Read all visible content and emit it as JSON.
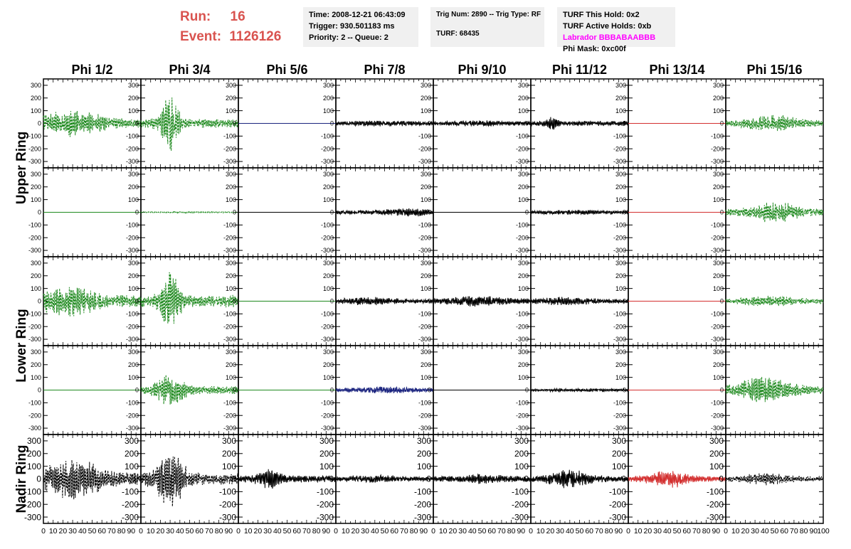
{
  "run": {
    "label": "Run:",
    "value": "16"
  },
  "event": {
    "label": "Event:",
    "value": "1126126"
  },
  "time_box": {
    "time": "Time: 2008-12-21 06:43:09",
    "trigger": "Trigger: 930.501183 ms",
    "priority": "Priority: 2 -- Queue: 2"
  },
  "trig_box": {
    "trig": "Trig Num: 2890 -- Trig Type: RF",
    "turf": "TURF: 68435"
  },
  "turf_box": {
    "this_hold": "TURF This Hold: 0x2",
    "active_holds": "TURF Active Holds: 0xb",
    "labrador": "Labrador BBBABAABBB",
    "phi_mask": "Phi Mask: 0xc00f",
    "labrador_color": "#ff00ff"
  },
  "chart_data": {
    "type": "line",
    "columns": [
      "Phi 1/2",
      "Phi 3/4",
      "Phi 5/6",
      "Phi 7/8",
      "Phi 9/10",
      "Phi 11/12",
      "Phi 13/14",
      "Phi 15/16"
    ],
    "row_labels": [
      {
        "label": "Upper Ring",
        "rows": [
          0,
          1
        ]
      },
      {
        "label": "Lower Ring",
        "rows": [
          2,
          3
        ]
      },
      {
        "label": "Nadir Ring",
        "rows": [
          4
        ]
      }
    ],
    "ylim": [
      -350,
      350
    ],
    "y_ticks": [
      -300,
      -200,
      -100,
      0,
      100,
      200,
      300
    ],
    "xlim": [
      0,
      100
    ],
    "x_tick_labels": [
      "0",
      "10",
      "20",
      "30",
      "40",
      "50",
      "60",
      "70",
      "80",
      "90",
      "100"
    ],
    "colors": {
      "green": "#1f8a1f",
      "black": "#000000",
      "blue": "#1a237e",
      "red": "#d32f2f"
    },
    "panels": [
      [
        {
          "color": "green",
          "dashed": true,
          "amp": 110,
          "peak": 30,
          "width": 35,
          "floor": 0.3,
          "seed": 11
        },
        {
          "color": "green",
          "dashed": true,
          "amp": 230,
          "peak": 30,
          "width": 10,
          "floor": 0.15,
          "seed": 12
        },
        {
          "color": "blue",
          "dashed": false,
          "amp": 0,
          "peak": 50,
          "width": 20,
          "floor": 0,
          "seed": 13
        },
        {
          "color": "black",
          "dashed": false,
          "amp": 25,
          "peak": 50,
          "width": 40,
          "floor": 0.6,
          "seed": 14
        },
        {
          "color": "black",
          "dashed": false,
          "amp": 25,
          "peak": 50,
          "width": 40,
          "floor": 0.6,
          "seed": 15
        },
        {
          "color": "black",
          "dashed": false,
          "amp": 60,
          "peak": 22,
          "width": 6,
          "floor": 0.35,
          "seed": 16
        },
        {
          "color": "red",
          "dashed": false,
          "amp": 0,
          "peak": 50,
          "width": 20,
          "floor": 0,
          "seed": 17
        },
        {
          "color": "green",
          "dashed": true,
          "amp": 70,
          "peak": 50,
          "width": 30,
          "floor": 0.3,
          "seed": 18
        }
      ],
      [
        {
          "color": "green",
          "dashed": false,
          "amp": 0,
          "peak": 50,
          "width": 20,
          "floor": 0,
          "seed": 21
        },
        {
          "color": "green",
          "dashed": true,
          "amp": 6,
          "peak": 50,
          "width": 40,
          "floor": 0.6,
          "seed": 22
        },
        {
          "color": "black",
          "dashed": false,
          "amp": 0,
          "peak": 50,
          "width": 20,
          "floor": 0,
          "seed": 23
        },
        {
          "color": "black",
          "dashed": false,
          "amp": 35,
          "peak": 75,
          "width": 25,
          "floor": 0.5,
          "seed": 24
        },
        {
          "color": "black",
          "dashed": false,
          "amp": 0,
          "peak": 50,
          "width": 20,
          "floor": 0,
          "seed": 25
        },
        {
          "color": "black",
          "dashed": false,
          "amp": 20,
          "peak": 50,
          "width": 40,
          "floor": 0.6,
          "seed": 26
        },
        {
          "color": "red",
          "dashed": false,
          "amp": 0,
          "peak": 50,
          "width": 20,
          "floor": 0,
          "seed": 27
        },
        {
          "color": "green",
          "dashed": true,
          "amp": 90,
          "peak": 50,
          "width": 25,
          "floor": 0.3,
          "seed": 28
        }
      ],
      [
        {
          "color": "green",
          "dashed": true,
          "amp": 130,
          "peak": 25,
          "width": 30,
          "floor": 0.35,
          "seed": 31
        },
        {
          "color": "green",
          "dashed": true,
          "amp": 250,
          "peak": 30,
          "width": 10,
          "floor": 0.2,
          "seed": 32
        },
        {
          "color": "green",
          "dashed": false,
          "amp": 0,
          "peak": 50,
          "width": 20,
          "floor": 0,
          "seed": 33
        },
        {
          "color": "black",
          "dashed": false,
          "amp": 35,
          "peak": 35,
          "width": 25,
          "floor": 0.5,
          "seed": 34
        },
        {
          "color": "black",
          "dashed": false,
          "amp": 45,
          "peak": 45,
          "width": 25,
          "floor": 0.5,
          "seed": 35
        },
        {
          "color": "black",
          "dashed": false,
          "amp": 35,
          "peak": 35,
          "width": 30,
          "floor": 0.5,
          "seed": 36
        },
        {
          "color": "red",
          "dashed": false,
          "amp": 0,
          "peak": 50,
          "width": 20,
          "floor": 0,
          "seed": 37
        },
        {
          "color": "green",
          "dashed": true,
          "amp": 45,
          "peak": 45,
          "width": 30,
          "floor": 0.4,
          "seed": 38
        }
      ],
      [
        {
          "color": "green",
          "dashed": false,
          "amp": 0,
          "peak": 50,
          "width": 20,
          "floor": 0,
          "seed": 41
        },
        {
          "color": "green",
          "dashed": true,
          "amp": 130,
          "peak": 30,
          "width": 15,
          "floor": 0.25,
          "seed": 42
        },
        {
          "color": "green",
          "dashed": false,
          "amp": 0,
          "peak": 50,
          "width": 20,
          "floor": 0,
          "seed": 43
        },
        {
          "color": "blue",
          "dashed": false,
          "amp": 30,
          "peak": 50,
          "width": 30,
          "floor": 0.5,
          "seed": 44
        },
        {
          "color": "black",
          "dashed": false,
          "amp": 0,
          "peak": 50,
          "width": 20,
          "floor": 0,
          "seed": 45
        },
        {
          "color": "black",
          "dashed": false,
          "amp": 15,
          "peak": 50,
          "width": 40,
          "floor": 0.6,
          "seed": 46
        },
        {
          "color": "red",
          "dashed": false,
          "amp": 0,
          "peak": 50,
          "width": 20,
          "floor": 0,
          "seed": 47
        },
        {
          "color": "green",
          "dashed": true,
          "amp": 120,
          "peak": 40,
          "width": 25,
          "floor": 0.3,
          "seed": 48
        }
      ],
      [
        {
          "color": "black",
          "dashed": true,
          "amp": 170,
          "peak": 30,
          "width": 30,
          "floor": 0.3,
          "seed": 51
        },
        {
          "color": "black",
          "dashed": true,
          "amp": 230,
          "peak": 30,
          "width": 15,
          "floor": 0.2,
          "seed": 52
        },
        {
          "color": "black",
          "dashed": false,
          "amp": 90,
          "peak": 32,
          "width": 12,
          "floor": 0.3,
          "seed": 53
        },
        {
          "color": "black",
          "dashed": false,
          "amp": 35,
          "peak": 40,
          "width": 30,
          "floor": 0.5,
          "seed": 54
        },
        {
          "color": "black",
          "dashed": false,
          "amp": 40,
          "peak": 50,
          "width": 30,
          "floor": 0.5,
          "seed": 55
        },
        {
          "color": "black",
          "dashed": false,
          "amp": 80,
          "peak": 40,
          "width": 20,
          "floor": 0.3,
          "seed": 56
        },
        {
          "color": "red",
          "dashed": false,
          "amp": 75,
          "peak": 42,
          "width": 20,
          "floor": 0.3,
          "seed": 57
        },
        {
          "color": "black",
          "dashed": true,
          "amp": 50,
          "peak": 40,
          "width": 25,
          "floor": 0.4,
          "seed": 58
        }
      ]
    ]
  }
}
